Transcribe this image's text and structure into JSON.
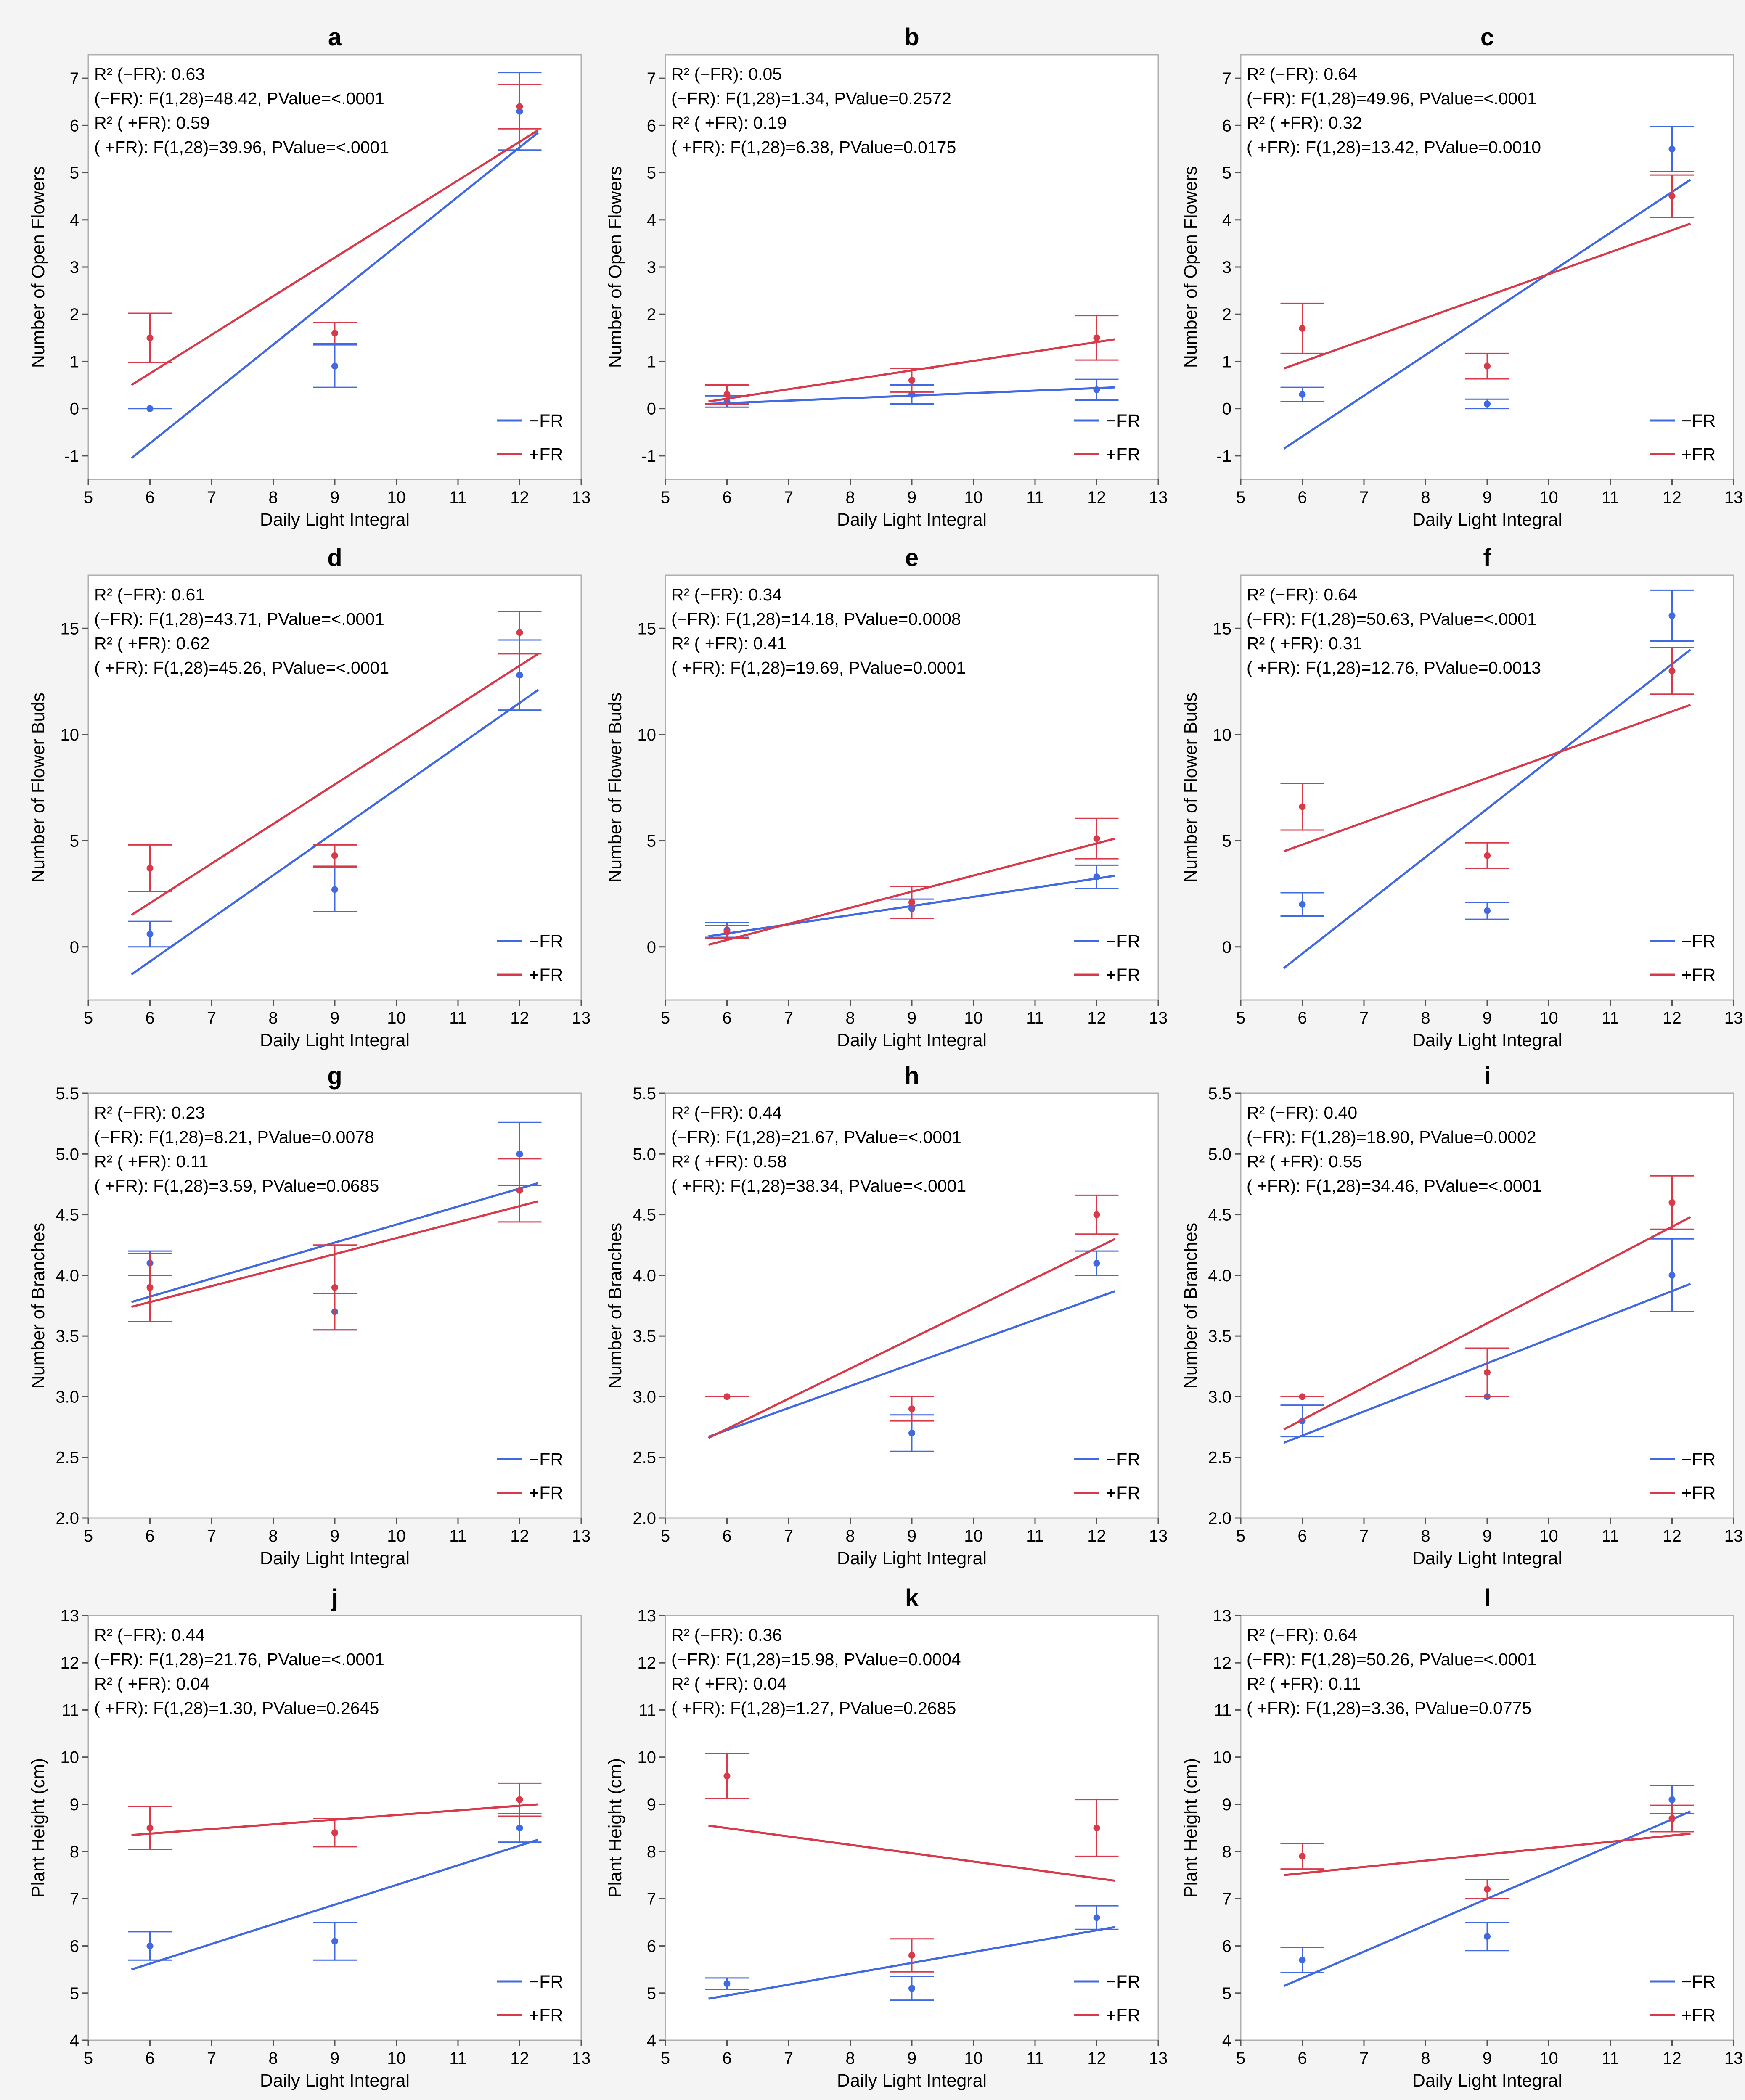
{
  "colors": {
    "minus_fr": "#4169e1",
    "plus_fr": "#d93a49"
  },
  "chart_data": [
    {
      "panel": "a",
      "type": "scatter",
      "xlabel": "Daily Light Integral",
      "ylabel": "Number of Open Flowers",
      "xlim": [
        5,
        13
      ],
      "ylim": [
        -1.5,
        7.5
      ],
      "xticks": [
        "5",
        "6",
        "7",
        "8",
        "9",
        "10",
        "11",
        "12",
        "13"
      ],
      "yticks": [
        "-1",
        "0",
        "1",
        "2",
        "3",
        "4",
        "5",
        "6",
        "7"
      ],
      "stats": [
        "R² (−FR): 0.63",
        "(−FR): F(1,28)=48.42, PValue=<.0001",
        "R² ( +FR): 0.59",
        "( +FR): F(1,28)=39.96, PValue=<.0001"
      ],
      "series": [
        {
          "name": "−FR",
          "x": [
            6,
            9,
            12
          ],
          "y": [
            0.0,
            0.9,
            6.3
          ],
          "err": [
            0.0,
            0.45,
            0.82
          ],
          "fit": [
            [
              5.7,
              -1.05
            ],
            [
              12.3,
              5.85
            ]
          ]
        },
        {
          "name": "+FR",
          "x": [
            6,
            9,
            12
          ],
          "y": [
            1.5,
            1.6,
            6.4
          ],
          "err": [
            0.52,
            0.22,
            0.47
          ],
          "fit": [
            [
              5.7,
              0.5
            ],
            [
              12.3,
              5.9
            ]
          ]
        }
      ]
    },
    {
      "panel": "b",
      "type": "scatter",
      "xlabel": "Daily Light Integral",
      "ylabel": "Number of Open Flowers",
      "xlim": [
        5,
        13
      ],
      "ylim": [
        -1.5,
        7.5
      ],
      "xticks": [
        "5",
        "6",
        "7",
        "8",
        "9",
        "10",
        "11",
        "12",
        "13"
      ],
      "yticks": [
        "-1",
        "0",
        "1",
        "2",
        "3",
        "4",
        "5",
        "6",
        "7"
      ],
      "stats": [
        "R² (−FR): 0.05",
        "(−FR): F(1,28)=1.34, PValue=0.2572",
        "R² ( +FR): 0.19",
        "( +FR): F(1,28)=6.38, PValue=0.0175"
      ],
      "series": [
        {
          "name": "−FR",
          "x": [
            6,
            9,
            12
          ],
          "y": [
            0.15,
            0.3,
            0.4
          ],
          "err": [
            0.12,
            0.2,
            0.22
          ],
          "fit": [
            [
              5.7,
              0.1
            ],
            [
              12.3,
              0.45
            ]
          ]
        },
        {
          "name": "+FR",
          "x": [
            6,
            9,
            12
          ],
          "y": [
            0.3,
            0.6,
            1.5
          ],
          "err": [
            0.2,
            0.25,
            0.47
          ],
          "fit": [
            [
              5.7,
              0.15
            ],
            [
              12.3,
              1.47
            ]
          ]
        }
      ]
    },
    {
      "panel": "c",
      "type": "scatter",
      "xlabel": "Daily Light Integral",
      "ylabel": "Number of Open Flowers",
      "xlim": [
        5,
        13
      ],
      "ylim": [
        -1.5,
        7.5
      ],
      "xticks": [
        "5",
        "6",
        "7",
        "8",
        "9",
        "10",
        "11",
        "12",
        "13"
      ],
      "yticks": [
        "-1",
        "0",
        "1",
        "2",
        "3",
        "4",
        "5",
        "6",
        "7"
      ],
      "stats": [
        "R² (−FR): 0.64",
        "(−FR): F(1,28)=49.96, PValue=<.0001",
        "R² ( +FR): 0.32",
        "( +FR): F(1,28)=13.42, PValue=0.0010"
      ],
      "series": [
        {
          "name": "−FR",
          "x": [
            6,
            9,
            12
          ],
          "y": [
            0.3,
            0.1,
            5.5
          ],
          "err": [
            0.15,
            0.1,
            0.48
          ],
          "fit": [
            [
              5.7,
              -0.85
            ],
            [
              12.3,
              4.85
            ]
          ]
        },
        {
          "name": "+FR",
          "x": [
            6,
            9,
            12
          ],
          "y": [
            1.7,
            0.9,
            4.5
          ],
          "err": [
            0.53,
            0.27,
            0.45
          ],
          "fit": [
            [
              5.7,
              0.85
            ],
            [
              12.3,
              3.92
            ]
          ]
        }
      ]
    },
    {
      "panel": "d",
      "type": "scatter",
      "xlabel": "Daily Light Integral",
      "ylabel": "Number of Flower Buds",
      "xlim": [
        5,
        13
      ],
      "ylim": [
        -2.5,
        17.5
      ],
      "xticks": [
        "5",
        "6",
        "7",
        "8",
        "9",
        "10",
        "11",
        "12",
        "13"
      ],
      "yticks": [
        "0",
        "5",
        "10",
        "15"
      ],
      "stats": [
        "R² (−FR): 0.61",
        "(−FR): F(1,28)=43.71, PValue=<.0001",
        "R² ( +FR): 0.62",
        "( +FR): F(1,28)=45.26, PValue=<.0001"
      ],
      "series": [
        {
          "name": "−FR",
          "x": [
            6,
            9,
            12
          ],
          "y": [
            0.6,
            2.7,
            12.8
          ],
          "err": [
            0.6,
            1.05,
            1.65
          ],
          "fit": [
            [
              5.7,
              -1.3
            ],
            [
              12.3,
              12.1
            ]
          ]
        },
        {
          "name": "+FR",
          "x": [
            6,
            9,
            12
          ],
          "y": [
            3.7,
            4.3,
            14.8
          ],
          "err": [
            1.1,
            0.5,
            1.0
          ],
          "fit": [
            [
              5.7,
              1.5
            ],
            [
              12.3,
              13.8
            ]
          ]
        }
      ]
    },
    {
      "panel": "e",
      "type": "scatter",
      "xlabel": "Daily Light Integral",
      "ylabel": "Number of Flower Buds",
      "xlim": [
        5,
        13
      ],
      "ylim": [
        -2.5,
        17.5
      ],
      "xticks": [
        "5",
        "6",
        "7",
        "8",
        "9",
        "10",
        "11",
        "12",
        "13"
      ],
      "yticks": [
        "0",
        "5",
        "10",
        "15"
      ],
      "stats": [
        "R² (−FR): 0.34",
        "(−FR): F(1,28)=14.18, PValue=0.0008",
        "R² ( +FR): 0.41",
        "( +FR): F(1,28)=19.69, PValue=0.0001"
      ],
      "series": [
        {
          "name": "−FR",
          "x": [
            6,
            9,
            12
          ],
          "y": [
            0.8,
            1.8,
            3.3
          ],
          "err": [
            0.35,
            0.45,
            0.55
          ],
          "fit": [
            [
              5.7,
              0.5
            ],
            [
              12.3,
              3.35
            ]
          ]
        },
        {
          "name": "+FR",
          "x": [
            6,
            9,
            12
          ],
          "y": [
            0.7,
            2.1,
            5.1
          ],
          "err": [
            0.3,
            0.75,
            0.95
          ],
          "fit": [
            [
              5.7,
              0.1
            ],
            [
              12.3,
              5.1
            ]
          ]
        }
      ]
    },
    {
      "panel": "f",
      "type": "scatter",
      "xlabel": "Daily Light Integral",
      "ylabel": "Number of Flower Buds",
      "xlim": [
        5,
        13
      ],
      "ylim": [
        -2.5,
        17.5
      ],
      "xticks": [
        "5",
        "6",
        "7",
        "8",
        "9",
        "10",
        "11",
        "12",
        "13"
      ],
      "yticks": [
        "0",
        "5",
        "10",
        "15"
      ],
      "stats": [
        "R² (−FR): 0.64",
        "(−FR): F(1,28)=50.63, PValue=<.0001",
        "R² ( +FR): 0.31",
        "( +FR): F(1,28)=12.76, PValue=0.0013"
      ],
      "series": [
        {
          "name": "−FR",
          "x": [
            6,
            9,
            12
          ],
          "y": [
            2.0,
            1.7,
            15.6
          ],
          "err": [
            0.55,
            0.4,
            1.2
          ],
          "fit": [
            [
              5.7,
              -1.0
            ],
            [
              12.3,
              14.0
            ]
          ]
        },
        {
          "name": "+FR",
          "x": [
            6,
            9,
            12
          ],
          "y": [
            6.6,
            4.3,
            13.0
          ],
          "err": [
            1.1,
            0.6,
            1.1
          ],
          "fit": [
            [
              5.7,
              4.5
            ],
            [
              12.3,
              11.4
            ]
          ]
        }
      ]
    },
    {
      "panel": "g",
      "type": "scatter",
      "xlabel": "Daily Light Integral",
      "ylabel": "Number of Branches",
      "xlim": [
        5,
        13
      ],
      "ylim": [
        2.0,
        5.5
      ],
      "xticks": [
        "5",
        "6",
        "7",
        "8",
        "9",
        "10",
        "11",
        "12",
        "13"
      ],
      "yticks": [
        "2.0",
        "2.5",
        "3.0",
        "3.5",
        "4.0",
        "4.5",
        "5.0",
        "5.5"
      ],
      "stats": [
        "R² (−FR): 0.23",
        "(−FR): F(1,28)=8.21, PValue=0.0078",
        "R² ( +FR): 0.11",
        "( +FR): F(1,28)=3.59, PValue=0.0685"
      ],
      "series": [
        {
          "name": "−FR",
          "x": [
            6,
            9,
            12
          ],
          "y": [
            4.1,
            3.7,
            5.0
          ],
          "err": [
            0.1,
            0.15,
            0.26
          ],
          "fit": [
            [
              5.7,
              3.78
            ],
            [
              12.3,
              4.76
            ]
          ]
        },
        {
          "name": "+FR",
          "x": [
            6,
            9,
            12
          ],
          "y": [
            3.9,
            3.9,
            4.7
          ],
          "err": [
            0.28,
            0.35,
            0.26
          ],
          "fit": [
            [
              5.7,
              3.74
            ],
            [
              12.3,
              4.61
            ]
          ]
        }
      ]
    },
    {
      "panel": "h",
      "type": "scatter",
      "xlabel": "Daily Light Integral",
      "ylabel": "Number of Branches",
      "xlim": [
        5,
        13
      ],
      "ylim": [
        2.0,
        5.5
      ],
      "xticks": [
        "5",
        "6",
        "7",
        "8",
        "9",
        "10",
        "11",
        "12",
        "13"
      ],
      "yticks": [
        "2.0",
        "2.5",
        "3.0",
        "3.5",
        "4.0",
        "4.5",
        "5.0",
        "5.5"
      ],
      "stats": [
        "R² (−FR): 0.44",
        "(−FR): F(1,28)=21.67, PValue=<.0001",
        "R² ( +FR): 0.58",
        "( +FR): F(1,28)=38.34, PValue=<.0001"
      ],
      "series": [
        {
          "name": "−FR",
          "x": [
            6,
            9,
            12
          ],
          "y": [
            3.0,
            2.7,
            4.1
          ],
          "err": [
            0.0,
            0.15,
            0.1
          ],
          "fit": [
            [
              5.7,
              2.67
            ],
            [
              12.3,
              3.87
            ]
          ]
        },
        {
          "name": "+FR",
          "x": [
            6,
            9,
            12
          ],
          "y": [
            3.0,
            2.9,
            4.5
          ],
          "err": [
            0.0,
            0.1,
            0.16
          ],
          "fit": [
            [
              5.7,
              2.66
            ],
            [
              12.3,
              4.3
            ]
          ]
        }
      ]
    },
    {
      "panel": "i",
      "type": "scatter",
      "xlabel": "Daily Light Integral",
      "ylabel": "Number of Branches",
      "xlim": [
        5,
        13
      ],
      "ylim": [
        2.0,
        5.5
      ],
      "xticks": [
        "5",
        "6",
        "7",
        "8",
        "9",
        "10",
        "11",
        "12",
        "13"
      ],
      "yticks": [
        "2.0",
        "2.5",
        "3.0",
        "3.5",
        "4.0",
        "4.5",
        "5.0",
        "5.5"
      ],
      "stats": [
        "R² (−FR): 0.40",
        "(−FR): F(1,28)=18.90, PValue=0.0002",
        "R² ( +FR): 0.55",
        "( +FR): F(1,28)=34.46, PValue=<.0001"
      ],
      "series": [
        {
          "name": "−FR",
          "x": [
            6,
            9,
            12
          ],
          "y": [
            2.8,
            3.0,
            4.0
          ],
          "err": [
            0.13,
            0.0,
            0.3
          ],
          "fit": [
            [
              5.7,
              2.62
            ],
            [
              12.3,
              3.93
            ]
          ]
        },
        {
          "name": "+FR",
          "x": [
            6,
            9,
            12
          ],
          "y": [
            3.0,
            3.2,
            4.6
          ],
          "err": [
            0.0,
            0.2,
            0.22
          ],
          "fit": [
            [
              5.7,
              2.73
            ],
            [
              12.3,
              4.48
            ]
          ]
        }
      ]
    },
    {
      "panel": "j",
      "type": "scatter",
      "xlabel": "Daily Light Integral",
      "ylabel": "Plant Height (cm)",
      "xlim": [
        5,
        13
      ],
      "ylim": [
        4,
        13
      ],
      "xticks": [
        "5",
        "6",
        "7",
        "8",
        "9",
        "10",
        "11",
        "12",
        "13"
      ],
      "yticks": [
        "4",
        "5",
        "6",
        "7",
        "8",
        "9",
        "10",
        "11",
        "12",
        "13"
      ],
      "stats": [
        "R² (−FR): 0.44",
        "(−FR): F(1,28)=21.76, PValue=<.0001",
        "R² ( +FR): 0.04",
        "( +FR): F(1,28)=1.30, PValue=0.2645"
      ],
      "series": [
        {
          "name": "−FR",
          "x": [
            6,
            9,
            12
          ],
          "y": [
            6.0,
            6.1,
            8.5
          ],
          "err": [
            0.3,
            0.4,
            0.3
          ],
          "fit": [
            [
              5.7,
              5.5
            ],
            [
              12.3,
              8.25
            ]
          ]
        },
        {
          "name": "+FR",
          "x": [
            6,
            9,
            12
          ],
          "y": [
            8.5,
            8.4,
            9.1
          ],
          "err": [
            0.45,
            0.3,
            0.35
          ],
          "fit": [
            [
              5.7,
              8.35
            ],
            [
              12.3,
              9.0
            ]
          ]
        }
      ]
    },
    {
      "panel": "k",
      "type": "scatter",
      "xlabel": "Daily Light Integral",
      "ylabel": "Plant Height (cm)",
      "xlim": [
        5,
        13
      ],
      "ylim": [
        4,
        13
      ],
      "xticks": [
        "5",
        "6",
        "7",
        "8",
        "9",
        "10",
        "11",
        "12",
        "13"
      ],
      "yticks": [
        "4",
        "5",
        "6",
        "7",
        "8",
        "9",
        "10",
        "11",
        "12",
        "13"
      ],
      "stats": [
        "R² (−FR): 0.36",
        "(−FR): F(1,28)=15.98, PValue=0.0004",
        "R² ( +FR): 0.04",
        "( +FR): F(1,28)=1.27, PValue=0.2685"
      ],
      "series": [
        {
          "name": "−FR",
          "x": [
            6,
            9,
            12
          ],
          "y": [
            5.2,
            5.1,
            6.6
          ],
          "err": [
            0.12,
            0.25,
            0.25
          ],
          "fit": [
            [
              5.7,
              4.88
            ],
            [
              12.3,
              6.4
            ]
          ]
        },
        {
          "name": "+FR",
          "x": [
            6,
            9,
            12
          ],
          "y": [
            9.6,
            5.8,
            8.5
          ],
          "err": [
            0.48,
            0.35,
            0.6
          ],
          "fit": [
            [
              5.7,
              8.55
            ],
            [
              12.3,
              7.38
            ]
          ]
        }
      ]
    },
    {
      "panel": "l",
      "type": "scatter",
      "xlabel": "Daily Light Integral",
      "ylabel": "Plant Height (cm)",
      "xlim": [
        5,
        13
      ],
      "ylim": [
        4,
        13
      ],
      "xticks": [
        "5",
        "6",
        "7",
        "8",
        "9",
        "10",
        "11",
        "12",
        "13"
      ],
      "yticks": [
        "4",
        "5",
        "6",
        "7",
        "8",
        "9",
        "10",
        "11",
        "12",
        "13"
      ],
      "stats": [
        "R² (−FR): 0.64",
        "(−FR): F(1,28)=50.26, PValue=<.0001",
        "R² ( +FR): 0.11",
        "( +FR): F(1,28)=3.36, PValue=0.0775"
      ],
      "series": [
        {
          "name": "−FR",
          "x": [
            6,
            9,
            12
          ],
          "y": [
            5.7,
            6.2,
            9.1
          ],
          "err": [
            0.27,
            0.3,
            0.3
          ],
          "fit": [
            [
              5.7,
              5.15
            ],
            [
              12.3,
              8.85
            ]
          ]
        },
        {
          "name": "+FR",
          "x": [
            6,
            9,
            12
          ],
          "y": [
            7.9,
            7.2,
            8.7
          ],
          "err": [
            0.27,
            0.2,
            0.28
          ],
          "fit": [
            [
              5.7,
              7.5
            ],
            [
              12.3,
              8.38
            ]
          ]
        }
      ]
    }
  ]
}
